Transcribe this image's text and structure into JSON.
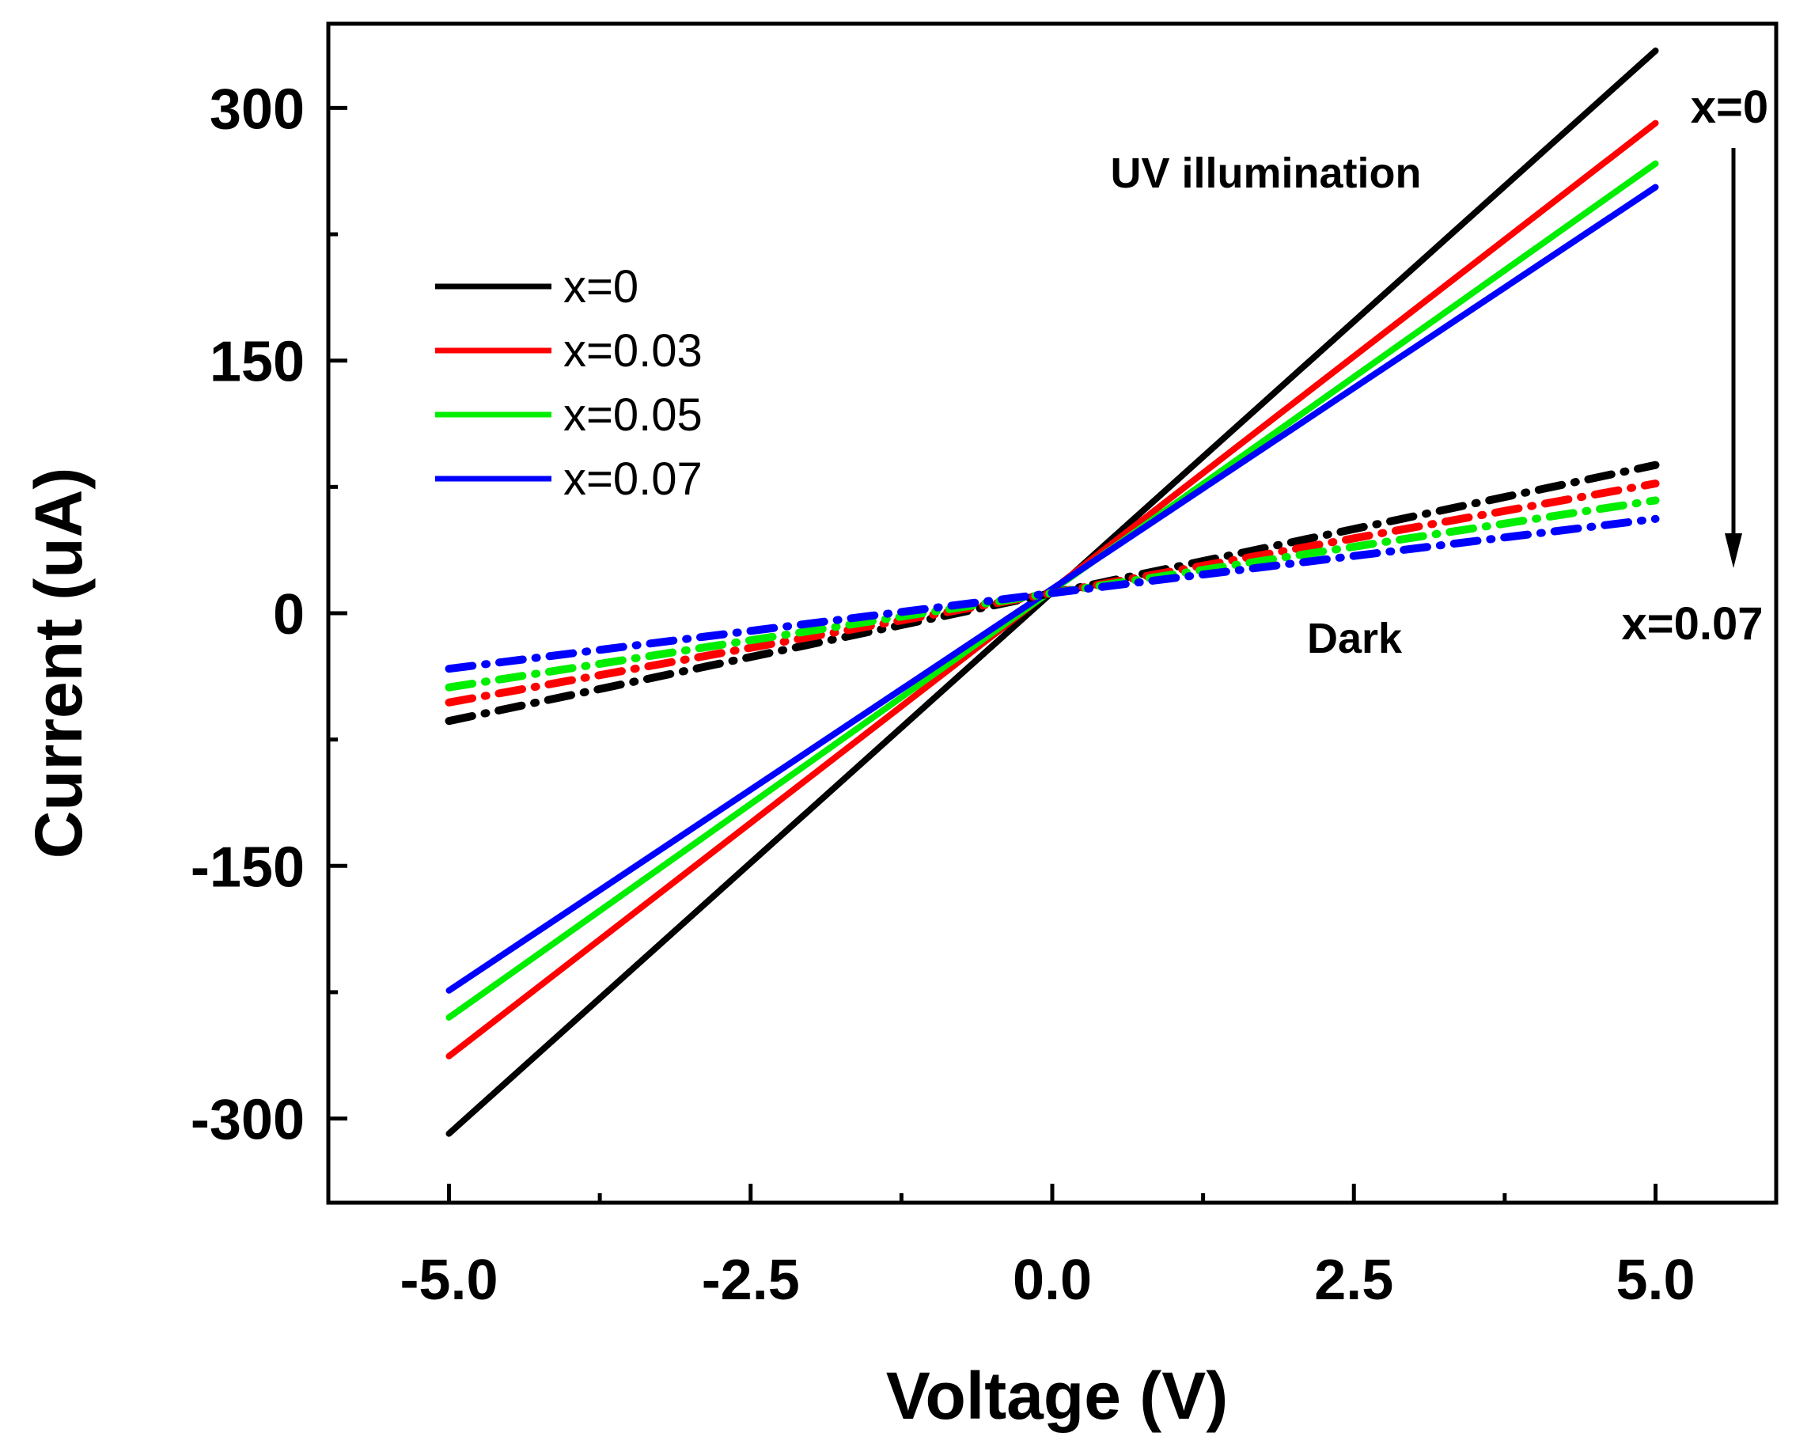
{
  "chart_data": {
    "type": "line",
    "xlabel": "Voltage (V)",
    "ylabel": "Current (uA)",
    "xlim": [
      -6.0,
      6.0
    ],
    "ylim": [
      -350,
      350
    ],
    "xticks": [
      -5.0,
      -2.5,
      0.0,
      2.5,
      5.0
    ],
    "xtick_labels": [
      "-5.0",
      "-2.5",
      "0.0",
      "2.5",
      "5.0"
    ],
    "xminor": [
      -3.75,
      -1.25,
      1.25,
      3.75
    ],
    "yticks": [
      -300,
      -150,
      0,
      150,
      300
    ],
    "ytick_labels": [
      "-300",
      "-150",
      "0",
      "150",
      "300"
    ],
    "yminor": [
      -225,
      -75,
      75,
      225
    ],
    "colors": {
      "x0": "#000000",
      "x003": "#ff0000",
      "x005": "#00ee00",
      "x007": "#0000ff"
    },
    "series": [
      {
        "name": "x=0",
        "key": "x0",
        "condition": "UV illumination",
        "style": "solid",
        "x": [
          -5.0,
          5.0
        ],
        "y": [
          -309,
          334
        ]
      },
      {
        "name": "x=0.03",
        "key": "x003",
        "condition": "UV illumination",
        "style": "solid",
        "x": [
          -5.0,
          5.0
        ],
        "y": [
          -263,
          291
        ]
      },
      {
        "name": "x=0.05",
        "key": "x005",
        "condition": "UV illumination",
        "style": "solid",
        "x": [
          -5.0,
          5.0
        ],
        "y": [
          -240,
          267
        ]
      },
      {
        "name": "x=0.07",
        "key": "x007",
        "condition": "UV illumination",
        "style": "solid",
        "x": [
          -5.0,
          5.0
        ],
        "y": [
          -224,
          253
        ]
      },
      {
        "name": "x=0",
        "key": "x0",
        "condition": "Dark",
        "style": "dashdot",
        "x": [
          -5.0,
          0.0,
          5.0
        ],
        "y": [
          -64,
          12,
          88
        ]
      },
      {
        "name": "x=0.03",
        "key": "x003",
        "condition": "Dark",
        "style": "dashdot",
        "x": [
          -5.0,
          0.0,
          5.0
        ],
        "y": [
          -53,
          12,
          77
        ]
      },
      {
        "name": "x=0.05",
        "key": "x005",
        "condition": "Dark",
        "style": "dashdot",
        "x": [
          -5.0,
          0.0,
          5.0
        ],
        "y": [
          -44,
          12,
          67
        ]
      },
      {
        "name": "x=0.07",
        "key": "x007",
        "condition": "Dark",
        "style": "dashdot",
        "x": [
          -5.0,
          0.0,
          5.0
        ],
        "y": [
          -33,
          12,
          56
        ]
      }
    ],
    "legend": [
      {
        "label": "x=0",
        "key": "x0"
      },
      {
        "label": "x=0.03",
        "key": "x003"
      },
      {
        "label": "x=0.05",
        "key": "x005"
      },
      {
        "label": "x=0.07",
        "key": "x007"
      }
    ],
    "annotations": {
      "uv": "UV illumination",
      "dark": "Dark",
      "arrow_top": "x=0",
      "arrow_bottom": "x=0.07"
    }
  }
}
